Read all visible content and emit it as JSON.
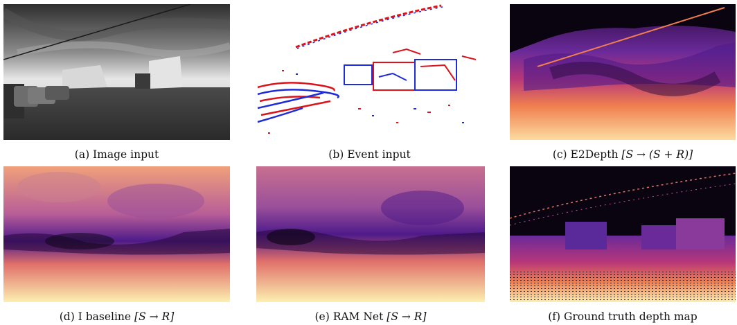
{
  "figure": {
    "panels": [
      {
        "id": "a",
        "caption": "(a) Image input"
      },
      {
        "id": "b",
        "caption": "(b) Event input"
      },
      {
        "id": "c",
        "caption_prefix": "(c) E2Depth",
        "caption_math": "[S → (S + R)]"
      },
      {
        "id": "d",
        "caption_prefix": "(d) I baseline",
        "caption_math": "[S → R]"
      },
      {
        "id": "e",
        "caption_prefix": "(e) RAM Net",
        "caption_math": "[S → R]"
      },
      {
        "id": "f",
        "caption": "(f) Ground truth depth map"
      }
    ],
    "colors": {
      "event_positive": "#d9141c",
      "event_negative": "#1f2bd6",
      "magma_dark": "#0a0410",
      "magma_purple": "#4e1a8a",
      "magma_magenta": "#b73779",
      "magma_orange": "#f07f4f",
      "magma_yellow": "#fcfdbf"
    }
  }
}
